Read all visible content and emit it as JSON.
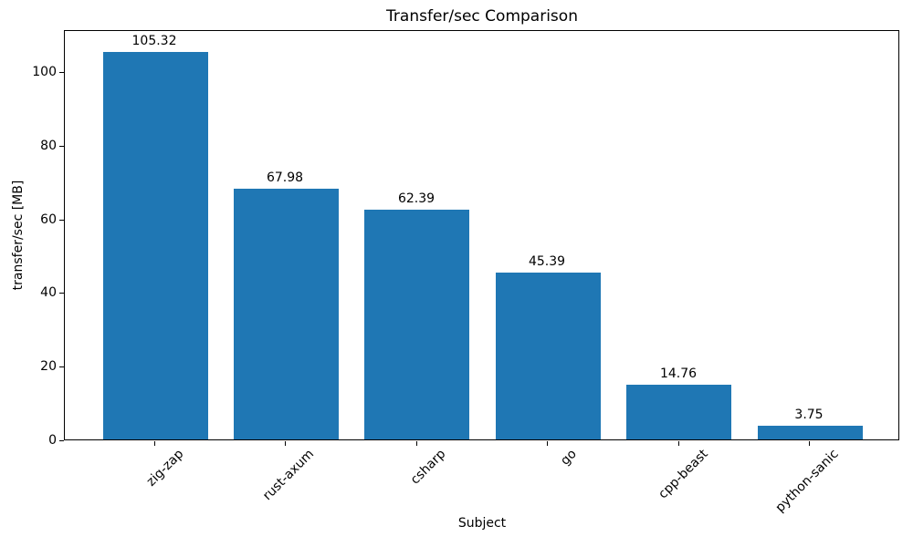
{
  "chart_data": {
    "type": "bar",
    "title": "Transfer/sec Comparison",
    "xlabel": "Subject",
    "ylabel": "transfer/sec [MB]",
    "categories": [
      "zig-zap",
      "rust-axum",
      "csharp",
      "go",
      "cpp-beast",
      "python-sanic"
    ],
    "values": [
      105.32,
      67.98,
      62.39,
      45.39,
      14.76,
      3.75
    ],
    "value_labels": [
      "105.32",
      "67.98",
      "62.39",
      "45.39",
      "14.76",
      "3.75"
    ],
    "bar_color": "#1f77b4",
    "y_ticks": [
      0,
      20,
      40,
      60,
      80,
      100
    ],
    "ylim": [
      0,
      111.4
    ],
    "grid": false,
    "legend": null,
    "tick_color": "#000000",
    "text_color": "#000000",
    "background_color": "#ffffff"
  }
}
